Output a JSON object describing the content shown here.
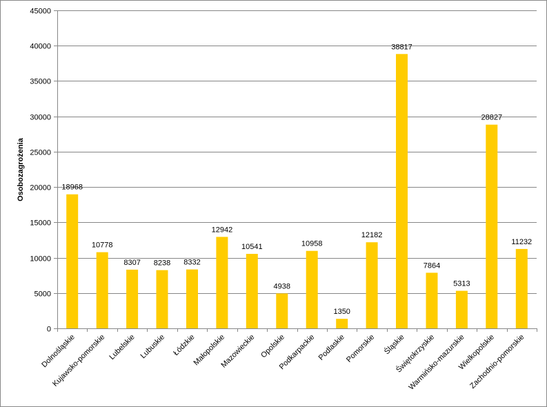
{
  "chart_data": {
    "type": "bar",
    "title": "",
    "xlabel": "",
    "ylabel": "Osobozagrożenia",
    "categories": [
      "Dolnośląskie",
      "Kujawsko-pomorskie",
      "Lubelskie",
      "Lubuskie",
      "Łódzkie",
      "Małopolskie",
      "Mazowieckie",
      "Opolskie",
      "Podkarpackie",
      "Podlaskie",
      "Pomorskie",
      "Śląskie",
      "Świętokrzyskie",
      "Warmińsko-mazurskie",
      "Wielkopolskie",
      "Zachodnio-pomorskie"
    ],
    "values": [
      18968,
      10778,
      8307,
      8238,
      8332,
      12942,
      10541,
      4938,
      10958,
      1350,
      12182,
      38817,
      7864,
      5313,
      28827,
      11232
    ],
    "ylim": [
      0,
      45000
    ],
    "yticks": [
      0,
      5000,
      10000,
      15000,
      20000,
      25000,
      30000,
      35000,
      40000,
      45000
    ],
    "grid": true,
    "legend": "none",
    "bar_color": "#FFCC00",
    "grid_color": "#868686"
  }
}
